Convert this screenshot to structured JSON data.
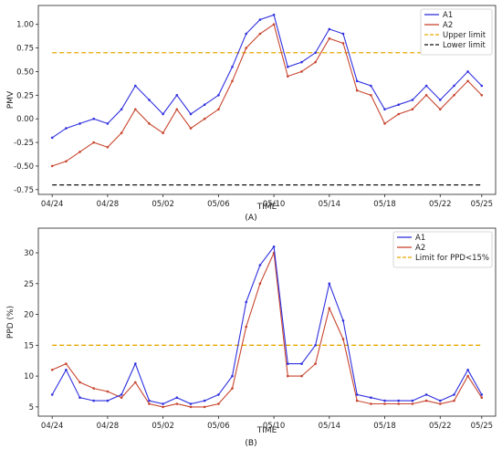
{
  "chart_data": [
    {
      "type": "line",
      "caption": "(A)",
      "xlabel": "TIME",
      "ylabel": "PMV",
      "x_ticks": [
        "04/24",
        "04/28",
        "05/02",
        "05/06",
        "05/10",
        "05/14",
        "05/18",
        "05/22",
        "05/25"
      ],
      "y_ticks": [
        "-0.75",
        "-0.50",
        "-0.25",
        "0.00",
        "0.25",
        "0.50",
        "0.75",
        "1.00"
      ],
      "xlim": [
        "04/23",
        "05/26"
      ],
      "ylim": [
        -0.8,
        1.2
      ],
      "grid": false,
      "legend": "top-right",
      "colors": {
        "A1": "#3030e0",
        "A2": "#c8452e",
        "upper": "#e6a800",
        "lower": "#111111"
      },
      "series": [
        {
          "name": "A1",
          "x": [
            "04/24",
            "04/25",
            "04/26",
            "04/27",
            "04/28",
            "04/29",
            "04/30",
            "05/01",
            "05/02",
            "05/03",
            "05/04",
            "05/05",
            "05/06",
            "05/07",
            "05/08",
            "05/09",
            "05/10",
            "05/11",
            "05/12",
            "05/13",
            "05/14",
            "05/15",
            "05/16",
            "05/17",
            "05/18",
            "05/19",
            "05/20",
            "05/21",
            "05/22",
            "05/23",
            "05/24",
            "05/25"
          ],
          "values": [
            -0.2,
            -0.1,
            -0.05,
            0.0,
            -0.05,
            0.1,
            0.35,
            0.2,
            0.05,
            0.25,
            0.05,
            0.15,
            0.25,
            0.55,
            0.9,
            1.05,
            1.1,
            0.55,
            0.6,
            0.7,
            0.95,
            0.9,
            0.4,
            0.35,
            0.1,
            0.15,
            0.2,
            0.35,
            0.2,
            0.35,
            0.5,
            0.35
          ]
        },
        {
          "name": "A2",
          "x": [
            "04/24",
            "04/25",
            "04/26",
            "04/27",
            "04/28",
            "04/29",
            "04/30",
            "05/01",
            "05/02",
            "05/03",
            "05/04",
            "05/05",
            "05/06",
            "05/07",
            "05/08",
            "05/09",
            "05/10",
            "05/11",
            "05/12",
            "05/13",
            "05/14",
            "05/15",
            "05/16",
            "05/17",
            "05/18",
            "05/19",
            "05/20",
            "05/21",
            "05/22",
            "05/23",
            "05/24",
            "05/25"
          ],
          "values": [
            -0.5,
            -0.45,
            -0.35,
            -0.25,
            -0.3,
            -0.15,
            0.1,
            -0.05,
            -0.15,
            0.1,
            -0.1,
            0.0,
            0.1,
            0.4,
            0.75,
            0.9,
            1.0,
            0.45,
            0.5,
            0.6,
            0.85,
            0.8,
            0.3,
            0.25,
            -0.05,
            0.05,
            0.1,
            0.25,
            0.1,
            0.25,
            0.4,
            0.25
          ]
        },
        {
          "name": "Upper limit",
          "x": [
            "04/24",
            "05/25"
          ],
          "values": [
            0.7,
            0.7
          ]
        },
        {
          "name": "Lower limit",
          "x": [
            "04/24",
            "05/25"
          ],
          "values": [
            -0.7,
            -0.7
          ]
        }
      ]
    },
    {
      "type": "line",
      "caption": "(B)",
      "xlabel": "TIME",
      "ylabel": "PPD (%)",
      "x_ticks": [
        "04/24",
        "04/28",
        "05/02",
        "05/06",
        "05/10",
        "05/14",
        "05/18",
        "05/22",
        "05/25"
      ],
      "y_ticks": [
        "5",
        "10",
        "15",
        "20",
        "25",
        "30"
      ],
      "xlim": [
        "04/23",
        "05/26"
      ],
      "ylim": [
        3.5,
        34
      ],
      "grid": false,
      "legend": "top-right",
      "colors": {
        "A1": "#3030e0",
        "A2": "#c8452e",
        "limit": "#e6a800"
      },
      "series": [
        {
          "name": "A1",
          "x": [
            "04/24",
            "04/25",
            "04/26",
            "04/27",
            "04/28",
            "04/29",
            "04/30",
            "05/01",
            "05/02",
            "05/03",
            "05/04",
            "05/05",
            "05/06",
            "05/07",
            "05/08",
            "05/09",
            "05/10",
            "05/11",
            "05/12",
            "05/13",
            "05/14",
            "05/15",
            "05/16",
            "05/17",
            "05/18",
            "05/19",
            "05/20",
            "05/21",
            "05/22",
            "05/23",
            "05/24",
            "05/25"
          ],
          "values": [
            7,
            11,
            6.5,
            6,
            6,
            7,
            12,
            6,
            5.5,
            6.5,
            5.5,
            6,
            7,
            10,
            22,
            28,
            31,
            12,
            12,
            15,
            25,
            19,
            7,
            6.5,
            6,
            6,
            6,
            7,
            6,
            7,
            11,
            7
          ]
        },
        {
          "name": "A2",
          "x": [
            "04/24",
            "04/25",
            "04/26",
            "04/27",
            "04/28",
            "04/29",
            "04/30",
            "05/01",
            "05/02",
            "05/03",
            "05/04",
            "05/05",
            "05/06",
            "05/07",
            "05/08",
            "05/09",
            "05/10",
            "05/11",
            "05/12",
            "05/13",
            "05/14",
            "05/15",
            "05/16",
            "05/17",
            "05/18",
            "05/19",
            "05/20",
            "05/21",
            "05/22",
            "05/23",
            "05/24",
            "05/25"
          ],
          "values": [
            11,
            12,
            9,
            8,
            7.5,
            6.5,
            9,
            5.5,
            5,
            5.5,
            5,
            5,
            5.5,
            8,
            18,
            25,
            30,
            10,
            10,
            12,
            21,
            16,
            6,
            5.5,
            5.5,
            5.5,
            5.5,
            6,
            5.5,
            6,
            10,
            6.5
          ]
        },
        {
          "name": "Limit for PPD<15%",
          "x": [
            "04/24",
            "05/25"
          ],
          "values": [
            15,
            15
          ]
        }
      ]
    }
  ]
}
